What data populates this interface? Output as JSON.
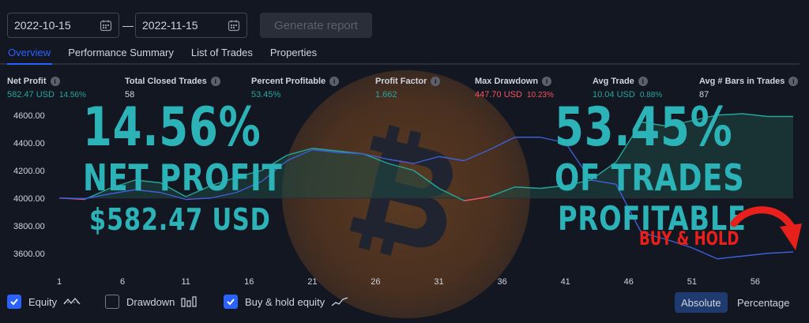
{
  "header": {
    "date_from": "2022-10-15",
    "date_to": "2022-11-15",
    "separator": "—",
    "generate_label": "Generate report"
  },
  "tabs": [
    {
      "label": "Overview",
      "active": true
    },
    {
      "label": "Performance Summary",
      "active": false
    },
    {
      "label": "List of Trades",
      "active": false
    },
    {
      "label": "Properties",
      "active": false
    }
  ],
  "metrics": {
    "net_profit": {
      "label": "Net Profit",
      "value": "582.47 USD",
      "pct": "14.56%"
    },
    "total_closed_trades": {
      "label": "Total Closed Trades",
      "value": "58"
    },
    "percent_profitable": {
      "label": "Percent Profitable",
      "value": "53.45%"
    },
    "profit_factor": {
      "label": "Profit Factor",
      "value": "1.662"
    },
    "max_drawdown": {
      "label": "Max Drawdown",
      "value": "447.70 USD",
      "pct": "10.23%"
    },
    "avg_trade": {
      "label": "Avg Trade",
      "value": "10.04 USD",
      "pct": "0.88%"
    },
    "avg_bars": {
      "label": "Avg # Bars in Trades",
      "value": "87"
    },
    "info_glyph": "i"
  },
  "overlay": {
    "left_big": "14.56%",
    "left_mid": "NET PROFIT",
    "left_small": "$582.47 USD",
    "right_big": "53.45%",
    "right_mid": "OF TRADES",
    "right_small": "PROFITABLE",
    "buy_hold_label": "BUY & HOLD"
  },
  "chart_data": {
    "type": "line",
    "y_ticks": [
      "4600.00",
      "4400.00",
      "4200.00",
      "4000.00",
      "3800.00",
      "3600.00"
    ],
    "y_tick_values": [
      4600,
      4400,
      4200,
      4000,
      3800,
      3600
    ],
    "x_ticks": [
      "1",
      "6",
      "11",
      "16",
      "21",
      "26",
      "31",
      "36",
      "41",
      "46",
      "51",
      "56"
    ],
    "x_tick_values": [
      1,
      6,
      11,
      16,
      21,
      26,
      31,
      36,
      41,
      46,
      51,
      56
    ],
    "xlim": [
      1,
      59
    ],
    "ylim": [
      3490,
      4690
    ],
    "baseline": 4000,
    "series": [
      {
        "name": "Equity",
        "color": "#26a69a",
        "x": [
          1,
          3,
          5,
          7,
          9,
          11,
          13,
          15,
          17,
          19,
          21,
          23,
          25,
          27,
          29,
          31,
          33,
          35,
          37,
          39,
          41,
          43,
          45,
          47,
          49,
          51,
          53,
          55,
          57,
          59
        ],
        "y": [
          4000,
          3990,
          4070,
          4130,
          4110,
          4010,
          4090,
          4150,
          4200,
          4310,
          4360,
          4340,
          4320,
          4250,
          4200,
          4070,
          3980,
          4010,
          4080,
          4070,
          4090,
          4130,
          4260,
          4550,
          4520,
          4560,
          4600,
          4610,
          4590,
          4590
        ],
        "negative_color": "#f7525f"
      },
      {
        "name": "Buy & hold equity",
        "color": "#3f5fd6",
        "x": [
          1,
          3,
          5,
          7,
          9,
          11,
          13,
          15,
          17,
          19,
          21,
          23,
          25,
          27,
          29,
          31,
          33,
          35,
          37,
          39,
          41,
          43,
          45,
          47,
          49,
          51,
          53,
          55,
          57,
          59
        ],
        "y": [
          4000,
          3995,
          4030,
          4060,
          4040,
          3990,
          4000,
          4040,
          4120,
          4270,
          4350,
          4330,
          4320,
          4280,
          4250,
          4300,
          4270,
          4350,
          4440,
          4440,
          4400,
          4130,
          4100,
          3750,
          3700,
          3640,
          3560,
          3580,
          3600,
          3610
        ]
      }
    ],
    "legend": [
      "Equity",
      "Drawdown",
      "Buy & hold equity"
    ],
    "grid": false
  },
  "legend": {
    "equity_label": "Equity",
    "equity_checked": true,
    "drawdown_label": "Drawdown",
    "drawdown_checked": false,
    "bh_label": "Buy & hold equity",
    "bh_checked": true,
    "absolute_label": "Absolute",
    "percentage_label": "Percentage",
    "mode": "Absolute"
  },
  "colors": {
    "background": "#131722",
    "accent": "#2962ff",
    "overlay_text": "#2bb3b8",
    "highlight_red": "#e8201c",
    "bitcoin_orange": "#f7931a"
  },
  "icons": {
    "calendar": "calendar-icon",
    "info": "info-icon",
    "bitcoin_logo": "bitcoin-logo",
    "arrow": "curved-arrow-icon"
  }
}
